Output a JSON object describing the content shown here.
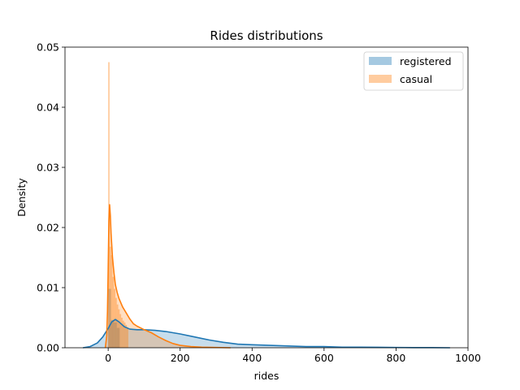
{
  "chart_data": {
    "type": "area",
    "title": "Rides distributions",
    "xlabel": "rides",
    "ylabel": "Density",
    "xlim": [
      -120,
      1000
    ],
    "ylim": [
      0,
      0.05
    ],
    "x_ticks": [
      0,
      200,
      400,
      600,
      800,
      1000
    ],
    "x_tick_labels": [
      "0",
      "200",
      "400",
      "600",
      "800",
      "1000"
    ],
    "y_ticks": [
      0.0,
      0.01,
      0.02,
      0.03,
      0.04,
      0.05
    ],
    "y_tick_labels": [
      "0.00",
      "0.01",
      "0.02",
      "0.03",
      "0.04",
      "0.05"
    ],
    "grid": false,
    "legend_position": "top-right",
    "series": [
      {
        "name": "registered",
        "color": "#1f77b4",
        "hist_bins": [
          {
            "x0": 0,
            "x1": 8,
            "value": 0.0098
          },
          {
            "x0": 8,
            "x1": 16,
            "value": 0.0046
          },
          {
            "x0": 16,
            "x1": 24,
            "value": 0.0042
          },
          {
            "x0": 24,
            "x1": 32,
            "value": 0.0033
          }
        ],
        "kde": [
          [
            -70,
            0.0
          ],
          [
            -50,
            0.0002
          ],
          [
            -30,
            0.0008
          ],
          [
            -15,
            0.0018
          ],
          [
            0,
            0.0032
          ],
          [
            10,
            0.0043
          ],
          [
            20,
            0.0047
          ],
          [
            30,
            0.0043
          ],
          [
            45,
            0.0035
          ],
          [
            60,
            0.0031
          ],
          [
            80,
            0.003
          ],
          [
            100,
            0.003
          ],
          [
            130,
            0.0029
          ],
          [
            160,
            0.0027
          ],
          [
            200,
            0.0023
          ],
          [
            240,
            0.0018
          ],
          [
            280,
            0.0013
          ],
          [
            320,
            0.0009
          ],
          [
            360,
            0.0006
          ],
          [
            400,
            0.0005
          ],
          [
            450,
            0.0004
          ],
          [
            500,
            0.0003
          ],
          [
            550,
            0.0002
          ],
          [
            600,
            0.0002
          ],
          [
            650,
            0.0001
          ],
          [
            700,
            0.0001
          ],
          [
            750,
            7e-05
          ],
          [
            800,
            5e-05
          ],
          [
            850,
            3e-05
          ],
          [
            900,
            2e-05
          ],
          [
            950,
            0.0
          ]
        ]
      },
      {
        "name": "casual",
        "color": "#ff7f0e",
        "hist_bins": [
          {
            "x0": 0,
            "x1": 4,
            "value": 0.0475
          },
          {
            "x0": 4,
            "x1": 8,
            "value": 0.0168
          },
          {
            "x0": 8,
            "x1": 12,
            "value": 0.0154
          },
          {
            "x0": 12,
            "x1": 16,
            "value": 0.0118
          },
          {
            "x0": 16,
            "x1": 20,
            "value": 0.0098
          },
          {
            "x0": 20,
            "x1": 24,
            "value": 0.0083
          },
          {
            "x0": 24,
            "x1": 28,
            "value": 0.0072
          },
          {
            "x0": 28,
            "x1": 32,
            "value": 0.0064
          },
          {
            "x0": 32,
            "x1": 36,
            "value": 0.0056
          },
          {
            "x0": 36,
            "x1": 40,
            "value": 0.005
          },
          {
            "x0": 40,
            "x1": 44,
            "value": 0.0045
          },
          {
            "x0": 44,
            "x1": 48,
            "value": 0.0042
          },
          {
            "x0": 48,
            "x1": 52,
            "value": 0.0038
          },
          {
            "x0": 52,
            "x1": 56,
            "value": 0.0034
          }
        ],
        "kde": [
          [
            -8,
            0.0
          ],
          [
            -4,
            0.002
          ],
          [
            -2,
            0.006
          ],
          [
            0,
            0.013
          ],
          [
            2,
            0.021
          ],
          [
            4,
            0.0238
          ],
          [
            6,
            0.022
          ],
          [
            8,
            0.019
          ],
          [
            12,
            0.015
          ],
          [
            16,
            0.0125
          ],
          [
            20,
            0.0105
          ],
          [
            25,
            0.0092
          ],
          [
            30,
            0.0082
          ],
          [
            40,
            0.0068
          ],
          [
            50,
            0.0058
          ],
          [
            60,
            0.0048
          ],
          [
            70,
            0.004
          ],
          [
            80,
            0.0036
          ],
          [
            90,
            0.0033
          ],
          [
            100,
            0.003
          ],
          [
            120,
            0.0025
          ],
          [
            140,
            0.0018
          ],
          [
            160,
            0.0012
          ],
          [
            180,
            0.0007
          ],
          [
            200,
            0.0004
          ],
          [
            230,
            0.0002
          ],
          [
            260,
            0.0001
          ],
          [
            300,
            5e-05
          ],
          [
            340,
            0.0
          ]
        ]
      }
    ]
  }
}
